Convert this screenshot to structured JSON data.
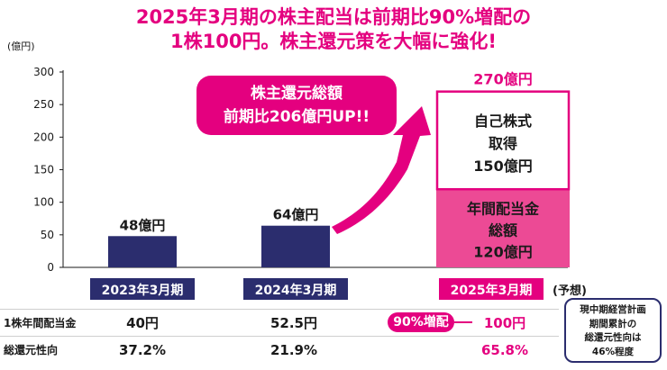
{
  "title_line1": "2025年3月期の株主配当は前期比90%増配の",
  "title_line2": "1株100円。株主還元策を大幅に強化!",
  "callout": {
    "line1": "株主還元総額",
    "line2": "前期比206億円UP!!"
  },
  "chart_data": {
    "type": "bar",
    "yunit": "(億円)",
    "ylim": [
      0,
      300
    ],
    "yticks": [
      0,
      50,
      100,
      150,
      200,
      250,
      300
    ],
    "categories": [
      "2023年3月期",
      "2024年3月期",
      "2025年3月期"
    ],
    "forecast_label": "(予想)",
    "totals": [
      48,
      64,
      270
    ],
    "total_labels": [
      "48億円",
      "64億円",
      "270億円"
    ],
    "stack": {
      "dividend": {
        "value": 120,
        "label_lines": [
          "年間配当金",
          "総額",
          "120億円"
        ]
      },
      "buyback": {
        "value": 150,
        "label_lines": [
          "自己株式",
          "取得",
          "150億円"
        ]
      }
    },
    "colors": {
      "navy": "#2b2d6e",
      "pink": "#e4007f",
      "pink_fill": "#ec4a95"
    }
  },
  "table": {
    "rows": [
      {
        "header": "1株年間配当金",
        "values": [
          "40円",
          "52.5円",
          "100円"
        ]
      },
      {
        "header": "総還元性向",
        "values": [
          "37.2%",
          "21.9%",
          "65.8%"
        ]
      }
    ],
    "increase_badge": "90%増配"
  },
  "note": {
    "lines": [
      "現中期経営計画",
      "期間累計の",
      "総還元性向は",
      "46%程度"
    ]
  }
}
